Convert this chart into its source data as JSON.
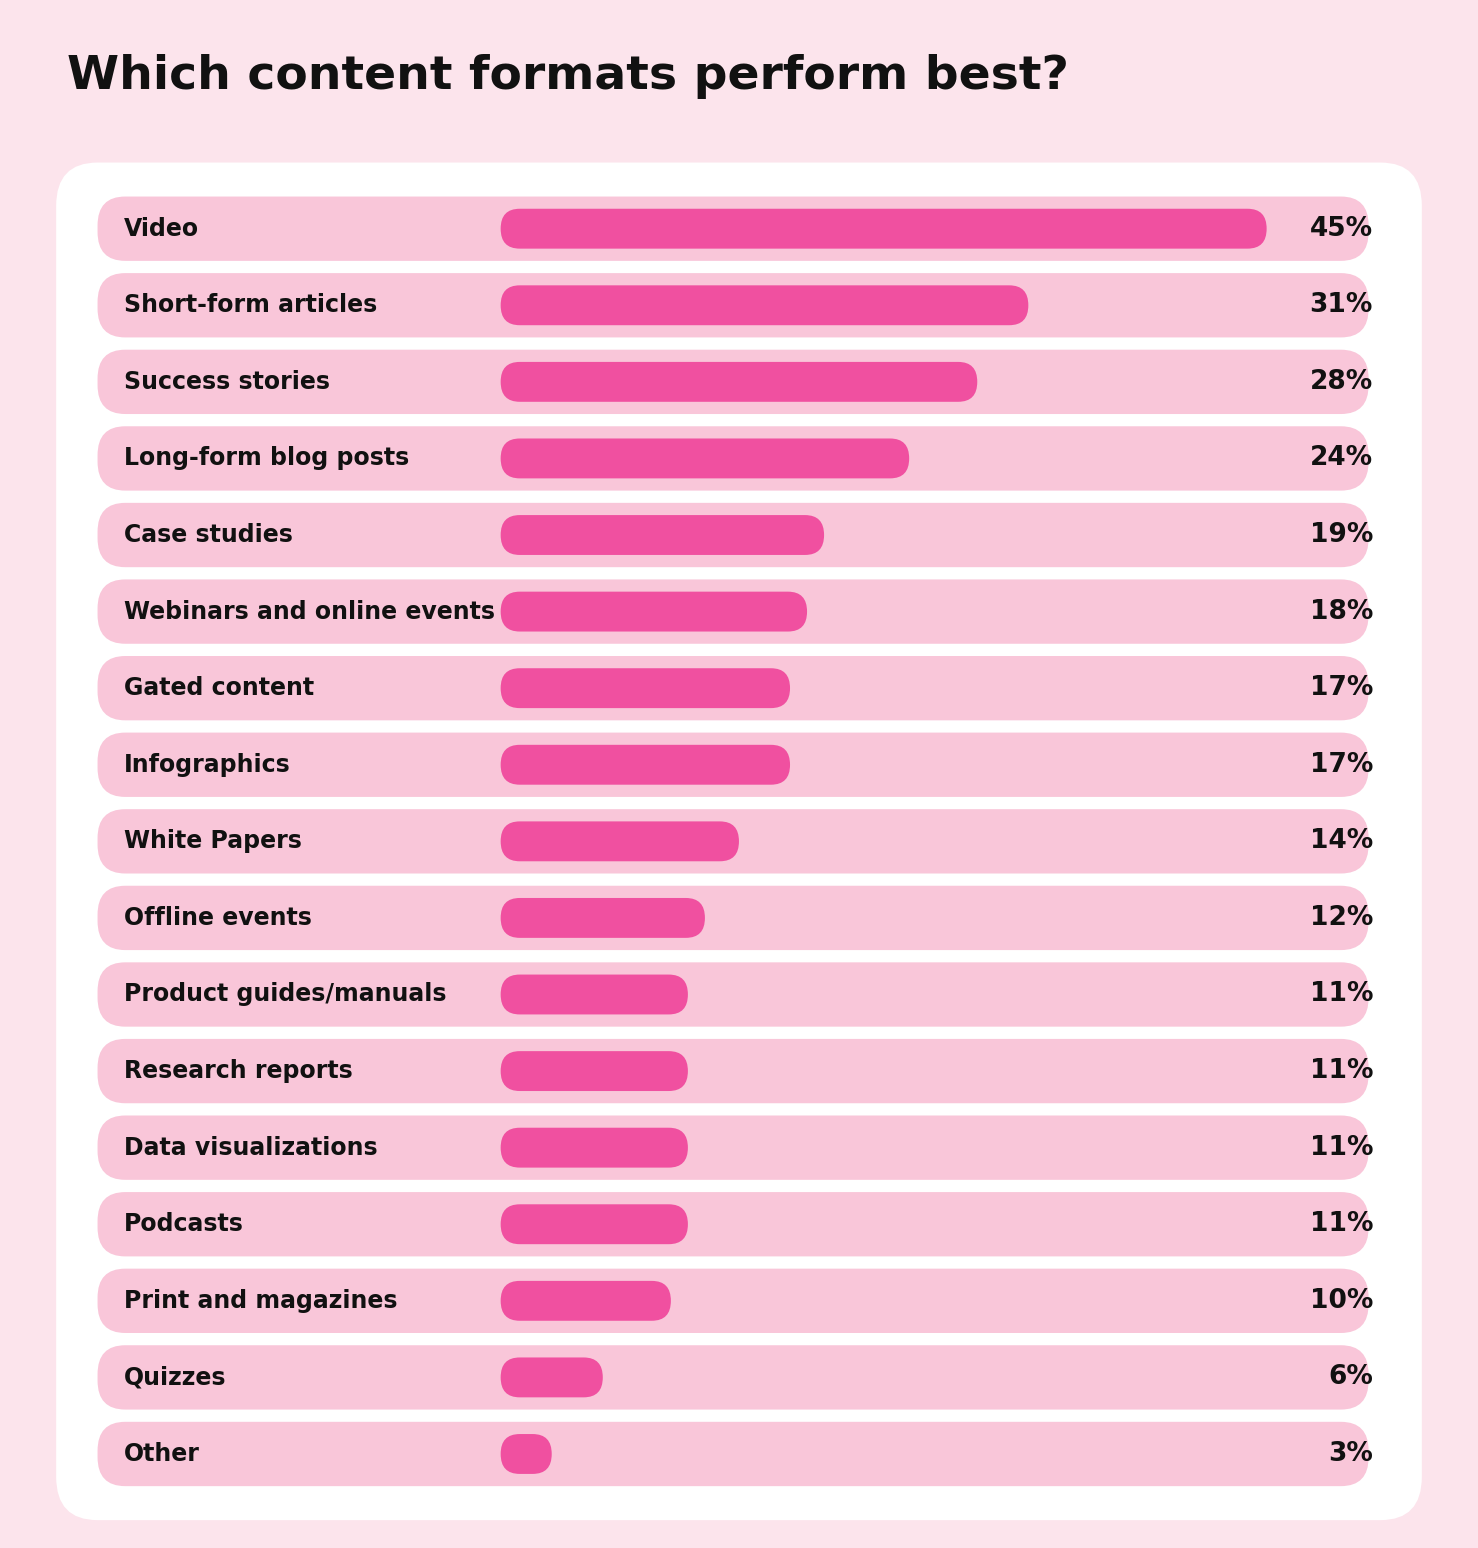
{
  "title": "Which content formats perform best?",
  "title_fontsize": 34,
  "title_fontweight": "bold",
  "background_color": "#fce4ec",
  "card_color": "#ffffff",
  "categories": [
    "Video",
    "Short-form articles",
    "Success stories",
    "Long-form blog posts",
    "Case studies",
    "Webinars and online events",
    "Gated content",
    "Infographics",
    "White Papers",
    "Offline events",
    "Product guides/manuals",
    "Research reports",
    "Data visualizations",
    "Podcasts",
    "Print and magazines",
    "Quizzes",
    "Other"
  ],
  "values": [
    45,
    31,
    28,
    24,
    19,
    18,
    17,
    17,
    14,
    12,
    11,
    11,
    11,
    11,
    10,
    6,
    3
  ],
  "bar_bg_color": "#f9c6d9",
  "bar_fill_color": "#f050a0",
  "label_fontsize": 17,
  "value_fontsize": 19,
  "max_value": 45
}
